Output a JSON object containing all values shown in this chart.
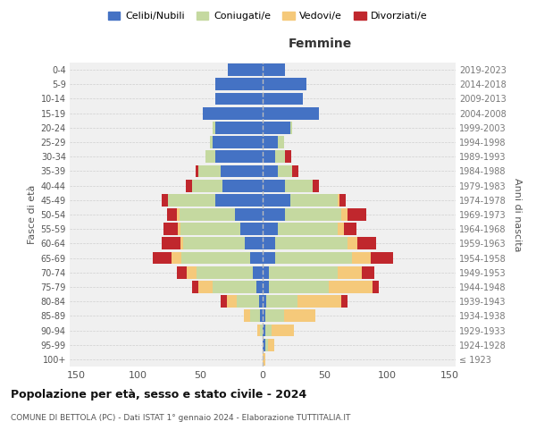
{
  "age_groups": [
    "100+",
    "95-99",
    "90-94",
    "85-89",
    "80-84",
    "75-79",
    "70-74",
    "65-69",
    "60-64",
    "55-59",
    "50-54",
    "45-49",
    "40-44",
    "35-39",
    "30-34",
    "25-29",
    "20-24",
    "15-19",
    "10-14",
    "5-9",
    "0-4"
  ],
  "birth_years": [
    "≤ 1923",
    "1924-1928",
    "1929-1933",
    "1934-1938",
    "1939-1943",
    "1944-1948",
    "1949-1953",
    "1954-1958",
    "1959-1963",
    "1964-1968",
    "1969-1973",
    "1974-1978",
    "1979-1983",
    "1984-1988",
    "1989-1993",
    "1994-1998",
    "1999-2003",
    "2004-2008",
    "2009-2013",
    "2014-2018",
    "2019-2023"
  ],
  "males": {
    "celibi": [
      0,
      0,
      0,
      2,
      3,
      5,
      8,
      10,
      14,
      18,
      22,
      38,
      32,
      34,
      38,
      40,
      38,
      48,
      38,
      38,
      28
    ],
    "coniugati": [
      0,
      0,
      2,
      8,
      18,
      35,
      45,
      55,
      50,
      48,
      45,
      38,
      25,
      18,
      8,
      2,
      2,
      0,
      0,
      0,
      0
    ],
    "vedovi": [
      0,
      0,
      2,
      5,
      8,
      12,
      8,
      8,
      2,
      2,
      2,
      0,
      0,
      0,
      0,
      0,
      0,
      0,
      0,
      0,
      0
    ],
    "divorziati": [
      0,
      0,
      0,
      0,
      5,
      5,
      8,
      15,
      15,
      12,
      8,
      5,
      5,
      2,
      0,
      0,
      0,
      0,
      0,
      0,
      0
    ]
  },
  "females": {
    "nubili": [
      0,
      2,
      2,
      2,
      3,
      5,
      5,
      10,
      10,
      12,
      18,
      22,
      18,
      12,
      10,
      12,
      22,
      45,
      32,
      35,
      18
    ],
    "coniugate": [
      0,
      2,
      5,
      15,
      25,
      48,
      55,
      62,
      58,
      48,
      45,
      38,
      22,
      12,
      8,
      5,
      2,
      0,
      0,
      0,
      0
    ],
    "vedove": [
      2,
      5,
      18,
      25,
      35,
      35,
      20,
      15,
      8,
      5,
      5,
      2,
      0,
      0,
      0,
      0,
      0,
      0,
      0,
      0,
      0
    ],
    "divorziate": [
      0,
      0,
      0,
      0,
      5,
      5,
      10,
      18,
      15,
      10,
      15,
      5,
      5,
      5,
      5,
      0,
      0,
      0,
      0,
      0,
      0
    ]
  },
  "colors": {
    "celibi_nubili": "#4472c4",
    "coniugati_e": "#c5d9a0",
    "vedovi_e": "#f5c97a",
    "divorziati_e": "#c0272d"
  },
  "title": "Popolazione per età, sesso e stato civile - 2024",
  "subtitle": "COMUNE DI BETTOLA (PC) - Dati ISTAT 1° gennaio 2024 - Elaborazione TUTTITALIA.IT",
  "xlabel_right": "Femmine",
  "ylabel_left": "Fasce di età",
  "ylabel_right": "Anni di nascita",
  "xlim": 155,
  "background_color": "#f0f0f0",
  "grid_color": "#cccccc",
  "legend_labels": [
    "Celibi/Nubili",
    "Coniugati/e",
    "Vedovi/e",
    "Divorziati/e"
  ]
}
